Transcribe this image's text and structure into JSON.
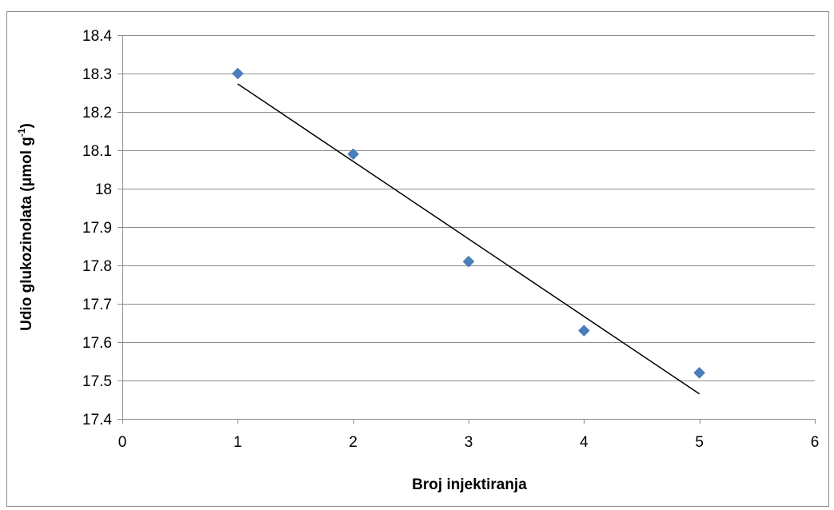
{
  "chart_data": {
    "type": "scatter",
    "title": "",
    "xlabel": "Broj injektiranja",
    "ylabel_main": "Udio glukozinolata  (μmol g",
    "ylabel_sup": "-1",
    "ylabel_end": ")",
    "xlim": [
      0,
      6
    ],
    "ylim": [
      17.4,
      18.4
    ],
    "x_ticks": [
      0,
      1,
      2,
      3,
      4,
      5,
      6
    ],
    "x_tick_labels": [
      "0",
      "1",
      "2",
      "3",
      "4",
      "5",
      "6"
    ],
    "y_ticks": [
      17.4,
      17.5,
      17.6,
      17.7,
      17.8,
      17.9,
      18.0,
      18.1,
      18.2,
      18.3,
      18.4
    ],
    "y_tick_labels": [
      "17.4",
      "17.5",
      "17.6",
      "17.7",
      "17.8",
      "17.9",
      "18",
      "18.1",
      "18.2",
      "18.3",
      "18.4"
    ],
    "grid": "horizontal",
    "legend": "none",
    "series": [
      {
        "x": [
          1,
          2,
          3,
          4,
          5
        ],
        "values": [
          18.3,
          18.09,
          17.81,
          17.63,
          17.52
        ],
        "marker": "diamond",
        "color": "#4a7ebb"
      }
    ],
    "trendline": {
      "type": "linear",
      "x_start": 1,
      "x_end": 5,
      "y_start": 18.273,
      "y_end": 17.465,
      "color": "#000000"
    }
  }
}
